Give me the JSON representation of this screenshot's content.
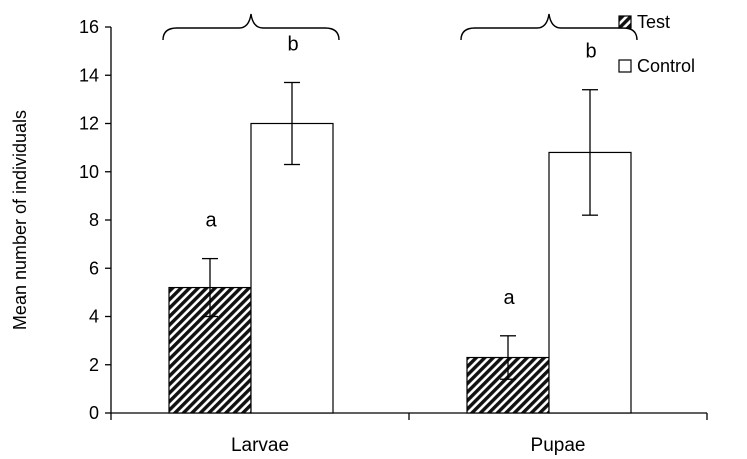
{
  "chart_data": {
    "type": "bar",
    "title": "",
    "xlabel": "",
    "ylabel": "Mean number of individuals",
    "ylim": [
      0,
      16
    ],
    "yticks": [
      0,
      2,
      4,
      6,
      8,
      10,
      12,
      14,
      16
    ],
    "grid": false,
    "legend_position": "top-right",
    "categories": [
      "Larvae",
      "Pupae"
    ],
    "series": [
      {
        "name": "Test",
        "pattern": "diagonal-hatch",
        "color": "#000000",
        "values": [
          5.2,
          2.3
        ],
        "error": [
          1.2,
          0.9
        ],
        "letters": [
          "a",
          "a"
        ]
      },
      {
        "name": "Control",
        "pattern": "none",
        "color": "#ffffff",
        "values": [
          12.0,
          10.8
        ],
        "error": [
          1.7,
          2.6
        ],
        "letters": [
          "b",
          "b"
        ]
      }
    ],
    "annotations": [
      "bracket-over-larvae-pair",
      "bracket-over-pupae-pair"
    ]
  }
}
